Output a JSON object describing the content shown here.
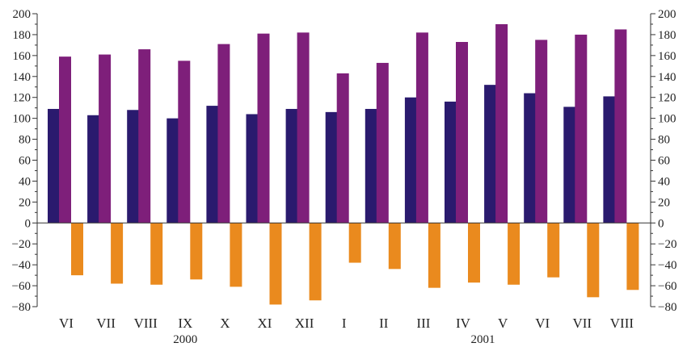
{
  "chart_data": {
    "type": "bar",
    "categories": [
      "VI",
      "VII",
      "VIII",
      "IX",
      "X",
      "XI",
      "XII",
      "I",
      "II",
      "III",
      "IV",
      "V",
      "VI",
      "VII",
      "VIII"
    ],
    "year_groups": [
      {
        "label": "2000",
        "start": 0,
        "end": 6
      },
      {
        "label": "2001",
        "start": 7,
        "end": 14
      }
    ],
    "series": [
      {
        "color": "#2a1a6e",
        "values": [
          109,
          103,
          108,
          100,
          112,
          104,
          109,
          106,
          109,
          120,
          116,
          132,
          124,
          111,
          121
        ]
      },
      {
        "color": "#7e1f7a",
        "values": [
          159,
          161,
          166,
          155,
          171,
          181,
          182,
          143,
          153,
          182,
          173,
          190,
          175,
          180,
          185
        ]
      },
      {
        "color": "#ea8a1e",
        "values": [
          -50,
          -58,
          -59,
          -54,
          -61,
          -78,
          -74,
          -38,
          -44,
          -62,
          -57,
          -59,
          -52,
          -71,
          -64
        ]
      }
    ],
    "ylim": [
      -80,
      200
    ],
    "yticks": [
      -80,
      -60,
      -40,
      -20,
      0,
      20,
      40,
      60,
      80,
      100,
      120,
      140,
      160,
      180,
      200
    ],
    "axes": "left-and-right",
    "grid": false,
    "legend": "none"
  }
}
